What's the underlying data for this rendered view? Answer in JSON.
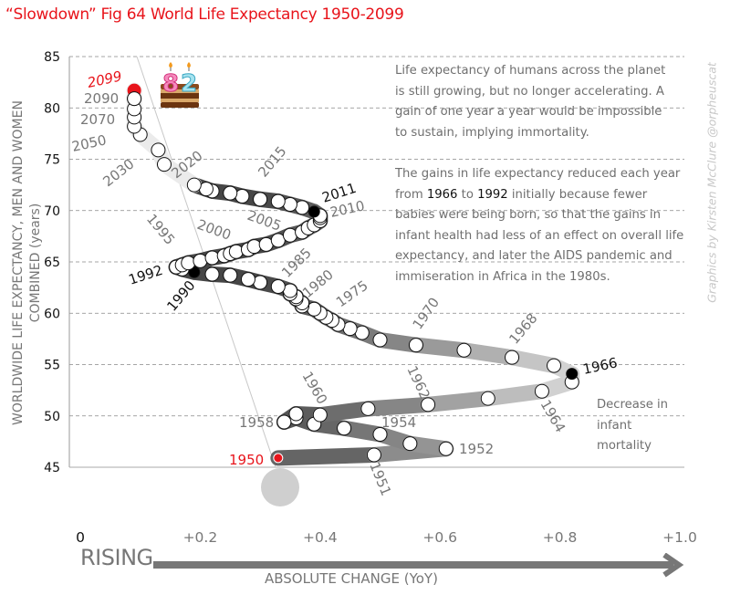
{
  "chart_data": {
    "type": "scatter",
    "title": "“Slowdown” Fig 64 World Life Expectancy 1950-2099",
    "xlabel": "ABSOLUTE CHANGE (YoY)",
    "xlabel_prefix": "RISING",
    "ylabel_line1": "WORLDWIDE LIFE EXPECTANCY, MEN AND WOMEN",
    "ylabel_line2": "COMBINED (years)",
    "xlim": [
      0,
      1.0
    ],
    "ylim": [
      45,
      85
    ],
    "x_ticks": [
      "0",
      "+0.2",
      "+0.4",
      "+0.6",
      "+0.8",
      "+1.0"
    ],
    "x_tick_values": [
      0,
      0.2,
      0.4,
      0.6,
      0.8,
      1.0
    ],
    "y_ticks": [
      "45",
      "50",
      "55",
      "60",
      "65",
      "70",
      "75",
      "80",
      "85"
    ],
    "y_tick_values": [
      45,
      50,
      55,
      60,
      65,
      70,
      75,
      80,
      85
    ],
    "grid": "horizontal dashed",
    "colors": {
      "title": "#e8141b",
      "highlight": "#e8141b",
      "milestone": "#000000",
      "point": "#ffffff",
      "track_dark": "#555555",
      "track_light": "#d0d0d0"
    },
    "points": [
      {
        "year": 1950,
        "x": 0.33,
        "y": 45.9,
        "kind": "start"
      },
      {
        "year": 1951,
        "x": 0.49,
        "y": 46.2
      },
      {
        "year": 1952,
        "x": 0.61,
        "y": 46.8
      },
      {
        "year": 1953,
        "x": 0.55,
        "y": 47.3
      },
      {
        "year": 1954,
        "x": 0.5,
        "y": 48.2
      },
      {
        "year": 1955,
        "x": 0.44,
        "y": 48.8
      },
      {
        "year": 1956,
        "x": 0.39,
        "y": 49.2
      },
      {
        "year": 1957,
        "x": 0.36,
        "y": 49.8
      },
      {
        "year": 1958,
        "x": 0.34,
        "y": 49.4
      },
      {
        "year": 1959,
        "x": 0.36,
        "y": 50.2
      },
      {
        "year": 1960,
        "x": 0.4,
        "y": 50.1
      },
      {
        "year": 1961,
        "x": 0.48,
        "y": 50.7
      },
      {
        "year": 1962,
        "x": 0.58,
        "y": 51.1
      },
      {
        "year": 1963,
        "x": 0.68,
        "y": 51.7
      },
      {
        "year": 1964,
        "x": 0.77,
        "y": 52.4
      },
      {
        "year": 1965,
        "x": 0.82,
        "y": 53.3
      },
      {
        "year": 1966,
        "x": 0.82,
        "y": 54.1,
        "kind": "milestone"
      },
      {
        "year": 1967,
        "x": 0.79,
        "y": 54.9
      },
      {
        "year": 1968,
        "x": 0.72,
        "y": 55.7
      },
      {
        "year": 1969,
        "x": 0.64,
        "y": 56.4
      },
      {
        "year": 1970,
        "x": 0.56,
        "y": 56.9
      },
      {
        "year": 1971,
        "x": 0.5,
        "y": 57.4
      },
      {
        "year": 1972,
        "x": 0.47,
        "y": 58.1
      },
      {
        "year": 1973,
        "x": 0.45,
        "y": 58.5
      },
      {
        "year": 1974,
        "x": 0.43,
        "y": 58.9
      },
      {
        "year": 1975,
        "x": 0.42,
        "y": 59.3
      },
      {
        "year": 1976,
        "x": 0.41,
        "y": 59.6
      },
      {
        "year": 1977,
        "x": 0.4,
        "y": 60.0
      },
      {
        "year": 1978,
        "x": 0.39,
        "y": 60.4
      },
      {
        "year": 1979,
        "x": 0.37,
        "y": 60.7
      },
      {
        "year": 1980,
        "x": 0.37,
        "y": 61.0
      },
      {
        "year": 1981,
        "x": 0.36,
        "y": 61.4
      },
      {
        "year": 1982,
        "x": 0.36,
        "y": 61.6
      },
      {
        "year": 1983,
        "x": 0.35,
        "y": 61.9
      },
      {
        "year": 1984,
        "x": 0.35,
        "y": 62.2
      },
      {
        "year": 1985,
        "x": 0.33,
        "y": 62.6
      },
      {
        "year": 1986,
        "x": 0.3,
        "y": 63.0
      },
      {
        "year": 1987,
        "x": 0.28,
        "y": 63.3
      },
      {
        "year": 1988,
        "x": 0.25,
        "y": 63.7
      },
      {
        "year": 1989,
        "x": 0.22,
        "y": 63.8
      },
      {
        "year": 1990,
        "x": 0.19,
        "y": 64.0,
        "kind": "milestone"
      },
      {
        "year": 1991,
        "x": 0.17,
        "y": 64.3
      },
      {
        "year": 1992,
        "x": 0.16,
        "y": 64.5
      },
      {
        "year": 1993,
        "x": 0.17,
        "y": 64.7
      },
      {
        "year": 1994,
        "x": 0.18,
        "y": 64.9
      },
      {
        "year": 1995,
        "x": 0.2,
        "y": 65.1
      },
      {
        "year": 1996,
        "x": 0.22,
        "y": 65.4
      },
      {
        "year": 1997,
        "x": 0.24,
        "y": 65.6
      },
      {
        "year": 1998,
        "x": 0.25,
        "y": 65.8
      },
      {
        "year": 1999,
        "x": 0.26,
        "y": 66.0
      },
      {
        "year": 2000,
        "x": 0.28,
        "y": 66.2
      },
      {
        "year": 2001,
        "x": 0.29,
        "y": 66.5
      },
      {
        "year": 2002,
        "x": 0.31,
        "y": 66.7
      },
      {
        "year": 2003,
        "x": 0.33,
        "y": 67.1
      },
      {
        "year": 2004,
        "x": 0.35,
        "y": 67.6
      },
      {
        "year": 2005,
        "x": 0.37,
        "y": 67.9
      },
      {
        "year": 2006,
        "x": 0.38,
        "y": 68.3
      },
      {
        "year": 2007,
        "x": 0.39,
        "y": 68.6
      },
      {
        "year": 2008,
        "x": 0.4,
        "y": 69.0
      },
      {
        "year": 2009,
        "x": 0.4,
        "y": 69.3
      },
      {
        "year": 2010,
        "x": 0.4,
        "y": 69.5
      },
      {
        "year": 2011,
        "x": 0.39,
        "y": 69.9,
        "kind": "milestone"
      },
      {
        "year": 2012,
        "x": 0.37,
        "y": 70.3
      },
      {
        "year": 2013,
        "x": 0.35,
        "y": 70.6
      },
      {
        "year": 2014,
        "x": 0.33,
        "y": 70.9
      },
      {
        "year": 2015,
        "x": 0.3,
        "y": 71.1
      },
      {
        "year": 2016,
        "x": 0.27,
        "y": 71.4
      },
      {
        "year": 2017,
        "x": 0.25,
        "y": 71.7
      },
      {
        "year": 2018,
        "x": 0.22,
        "y": 71.9
      },
      {
        "year": 2019,
        "x": 0.21,
        "y": 72.1
      },
      {
        "year": 2020,
        "x": 0.19,
        "y": 72.5
      },
      {
        "year": 2030,
        "x": 0.14,
        "y": 74.5
      },
      {
        "year": 2040,
        "x": 0.13,
        "y": 75.9
      },
      {
        "year": 2050,
        "x": 0.1,
        "y": 77.4
      },
      {
        "year": 2060,
        "x": 0.09,
        "y": 78.2
      },
      {
        "year": 2070,
        "x": 0.09,
        "y": 79.1
      },
      {
        "year": 2080,
        "x": 0.09,
        "y": 79.9
      },
      {
        "year": 2090,
        "x": 0.09,
        "y": 80.9
      },
      {
        "year": 2099,
        "x": 0.09,
        "y": 81.7,
        "kind": "end"
      }
    ],
    "year_labels": [
      {
        "text": "2099",
        "year": 2099,
        "style": "red-italic"
      },
      {
        "text": "2090",
        "year": 2090
      },
      {
        "text": "2070",
        "year": 2070
      },
      {
        "text": "2050",
        "year": 2050
      },
      {
        "text": "2030",
        "year": 2030
      },
      {
        "text": "2020",
        "year": 2020
      },
      {
        "text": "2015",
        "year": 2015
      },
      {
        "text": "2011",
        "year": 2011,
        "style": "black"
      },
      {
        "text": "2010",
        "year": 2010
      },
      {
        "text": "2005",
        "year": 2005
      },
      {
        "text": "2000",
        "year": 2000
      },
      {
        "text": "1995",
        "year": 1995
      },
      {
        "text": "1992",
        "year": 1992,
        "style": "black"
      },
      {
        "text": "1990",
        "year": 1990,
        "style": "black"
      },
      {
        "text": "1985",
        "year": 1985
      },
      {
        "text": "1980",
        "year": 1980
      },
      {
        "text": "1975",
        "year": 1975
      },
      {
        "text": "1970",
        "year": 1970
      },
      {
        "text": "1968",
        "year": 1968
      },
      {
        "text": "1966",
        "year": 1966,
        "style": "black"
      },
      {
        "text": "1964",
        "year": 1964
      },
      {
        "text": "1962",
        "year": 1962
      },
      {
        "text": "1960",
        "year": 1960
      },
      {
        "text": "1958",
        "year": 1958
      },
      {
        "text": "1954",
        "year": 1954
      },
      {
        "text": "1952",
        "year": 1952
      },
      {
        "text": "1951",
        "year": 1951
      },
      {
        "text": "1950",
        "year": 1950,
        "style": "red"
      }
    ],
    "annotations": {
      "cake_number": "82",
      "note1": "Life expectancy of humans across the planet is still growing, but no longer accelerating. A gain of one year a year would be impossible to sustain, implying immortality.",
      "note2_parts": [
        "The gains in life expectancy reduced each year from ",
        "1966",
        " to ",
        "1992",
        " initially because fewer babies were being born, so that the gains in infant health had less of an effect on overall life expectancy, and later the AIDS pandemic and immiseration in Africa in the 1980s."
      ],
      "note3": "Decrease in infant mortality",
      "credit": "Graphics by Kirsten McClure @orpheuscat"
    }
  }
}
